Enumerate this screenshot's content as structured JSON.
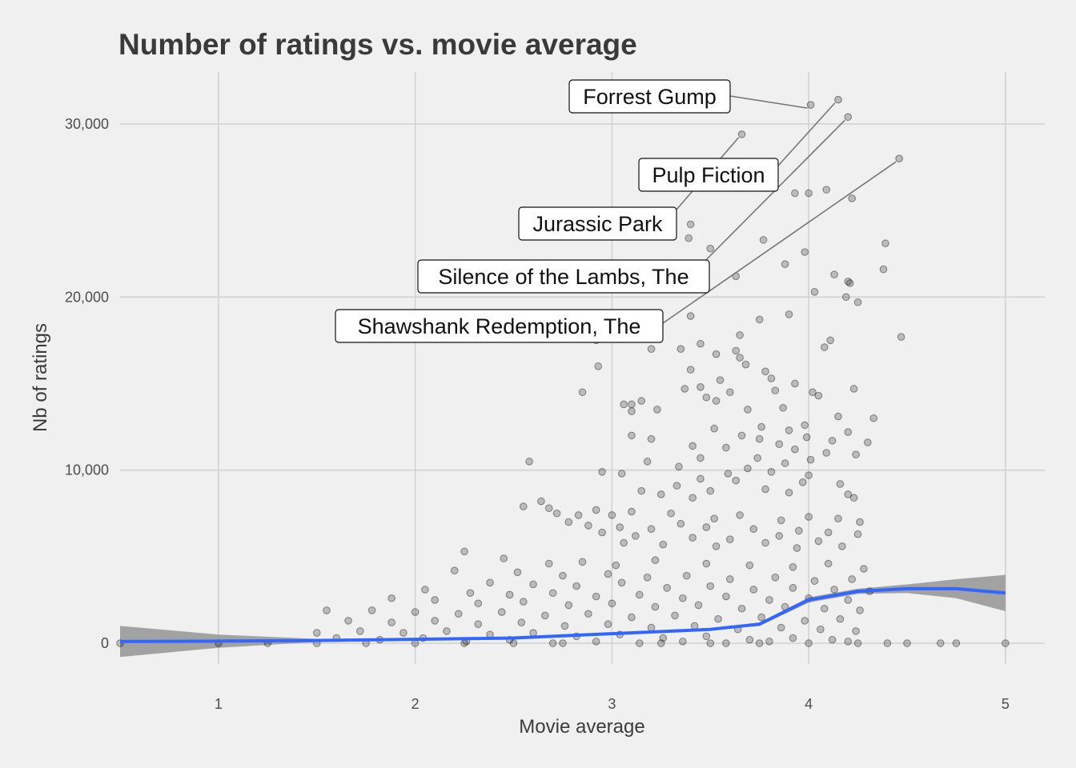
{
  "chart_data": {
    "type": "scatter",
    "title": "Number of ratings vs. movie average",
    "xlabel": "Movie average",
    "ylabel": "Nb of ratings",
    "xlim": [
      0.5,
      5.2
    ],
    "ylim": [
      -1200,
      33000
    ],
    "x_ticks": [
      1,
      2,
      3,
      4,
      5
    ],
    "x_tick_labels": [
      "1",
      "2",
      "3",
      "4",
      "5"
    ],
    "y_ticks": [
      0,
      10000,
      20000,
      30000
    ],
    "y_tick_labels": [
      "0",
      "10,000",
      "20,000",
      "30,000"
    ],
    "grid": true,
    "legend": "none",
    "point_color": "#000000",
    "point_alpha": 0.2,
    "smooth_color": "#3366ff",
    "band_color": "#999999",
    "highlighted_points": [
      {
        "label": "Forrest Gump",
        "x": 4.01,
        "y": 31100
      },
      {
        "label": "Pulp Fiction",
        "x": 4.15,
        "y": 31400
      },
      {
        "label": "Jurassic Park",
        "x": 3.66,
        "y": 29400
      },
      {
        "label": "Silence of the Lambs, The",
        "x": 4.2,
        "y": 30400
      },
      {
        "label": "Shawshank Redemption, The",
        "x": 4.46,
        "y": 28000
      }
    ],
    "other_points": [
      [
        4.0,
        26000
      ],
      [
        4.09,
        26200
      ],
      [
        4.22,
        25700
      ],
      [
        3.93,
        26000
      ],
      [
        3.4,
        24200
      ],
      [
        3.39,
        23400
      ],
      [
        3.77,
        23300
      ],
      [
        4.39,
        23100
      ],
      [
        3.5,
        22800
      ],
      [
        3.98,
        22600
      ],
      [
        4.38,
        21600
      ],
      [
        3.63,
        21200
      ],
      [
        3.88,
        21900
      ],
      [
        4.13,
        21300
      ],
      [
        4.21,
        20800
      ],
      [
        4.2,
        20900
      ],
      [
        4.19,
        20000
      ],
      [
        4.25,
        19700
      ],
      [
        4.03,
        20300
      ],
      [
        3.4,
        18900
      ],
      [
        3.75,
        18700
      ],
      [
        3.9,
        19000
      ],
      [
        3.65,
        17800
      ],
      [
        4.11,
        17500
      ],
      [
        4.08,
        17100
      ],
      [
        4.47,
        17700
      ],
      [
        3.45,
        17300
      ],
      [
        3.63,
        16900
      ],
      [
        3.35,
        17000
      ],
      [
        3.2,
        17000
      ],
      [
        2.92,
        17500
      ],
      [
        2.93,
        16000
      ],
      [
        3.65,
        16500
      ],
      [
        3.68,
        16100
      ],
      [
        3.53,
        16700
      ],
      [
        3.78,
        15700
      ],
      [
        3.4,
        15800
      ],
      [
        3.81,
        15300
      ],
      [
        3.93,
        15000
      ],
      [
        4.23,
        14700
      ],
      [
        3.45,
        14800
      ],
      [
        3.55,
        15200
      ],
      [
        3.6,
        14500
      ],
      [
        2.85,
        14500
      ],
      [
        3.37,
        14700
      ],
      [
        3.83,
        14600
      ],
      [
        4.02,
        14500
      ],
      [
        4.05,
        14300
      ],
      [
        3.53,
        14000
      ],
      [
        3.48,
        14200
      ],
      [
        3.87,
        13600
      ],
      [
        3.1,
        13800
      ],
      [
        3.15,
        14000
      ],
      [
        3.06,
        13800
      ],
      [
        3.1,
        13400
      ],
      [
        3.23,
        13500
      ],
      [
        3.69,
        13500
      ],
      [
        4.15,
        13100
      ],
      [
        4.33,
        13000
      ],
      [
        3.98,
        12600
      ],
      [
        3.52,
        12400
      ],
      [
        3.76,
        12500
      ],
      [
        3.9,
        12300
      ],
      [
        3.66,
        12000
      ],
      [
        3.99,
        11900
      ],
      [
        4.2,
        12200
      ],
      [
        3.1,
        12000
      ],
      [
        3.2,
        11800
      ],
      [
        3.75,
        11800
      ],
      [
        3.85,
        11500
      ],
      [
        4.12,
        11700
      ],
      [
        4.3,
        11600
      ],
      [
        3.41,
        11400
      ],
      [
        3.58,
        11300
      ],
      [
        3.93,
        11200
      ],
      [
        4.09,
        11000
      ],
      [
        4.24,
        10900
      ],
      [
        3.45,
        10700
      ],
      [
        3.74,
        10700
      ],
      [
        4.01,
        10600
      ],
      [
        3.18,
        10500
      ],
      [
        3.88,
        10400
      ],
      [
        2.58,
        10500
      ],
      [
        3.34,
        10200
      ],
      [
        3.59,
        9800
      ],
      [
        3.69,
        10100
      ],
      [
        3.81,
        9900
      ],
      [
        4.0,
        9700
      ],
      [
        2.95,
        9900
      ],
      [
        3.05,
        9800
      ],
      [
        3.45,
        9500
      ],
      [
        3.63,
        9400
      ],
      [
        3.97,
        9300
      ],
      [
        4.16,
        9200
      ],
      [
        3.33,
        9100
      ],
      [
        3.5,
        8800
      ],
      [
        3.78,
        8900
      ],
      [
        3.9,
        8700
      ],
      [
        4.2,
        8600
      ],
      [
        4.23,
        8400
      ],
      [
        3.15,
        8800
      ],
      [
        3.25,
        8600
      ],
      [
        3.41,
        8400
      ],
      [
        2.64,
        8200
      ],
      [
        2.55,
        7900
      ],
      [
        2.68,
        7800
      ],
      [
        2.72,
        7500
      ],
      [
        2.83,
        7400
      ],
      [
        2.92,
        7700
      ],
      [
        3.0,
        7400
      ],
      [
        3.1,
        7600
      ],
      [
        3.3,
        7500
      ],
      [
        3.52,
        7200
      ],
      [
        3.65,
        7400
      ],
      [
        3.86,
        7100
      ],
      [
        4.0,
        7300
      ],
      [
        4.15,
        7200
      ],
      [
        4.26,
        7000
      ],
      [
        2.78,
        7000
      ],
      [
        2.88,
        6800
      ],
      [
        3.04,
        6700
      ],
      [
        3.2,
        6600
      ],
      [
        3.35,
        6900
      ],
      [
        3.48,
        6700
      ],
      [
        3.72,
        6600
      ],
      [
        3.95,
        6500
      ],
      [
        4.1,
        6400
      ],
      [
        4.25,
        6300
      ],
      [
        2.95,
        6400
      ],
      [
        3.12,
        6200
      ],
      [
        3.41,
        6100
      ],
      [
        3.6,
        6000
      ],
      [
        3.85,
        6200
      ],
      [
        4.05,
        5900
      ],
      [
        3.06,
        5800
      ],
      [
        3.26,
        5700
      ],
      [
        3.53,
        5600
      ],
      [
        3.78,
        5800
      ],
      [
        3.94,
        5500
      ],
      [
        4.17,
        5600
      ],
      [
        2.25,
        5300
      ],
      [
        2.45,
        4900
      ],
      [
        2.68,
        4600
      ],
      [
        2.85,
        4700
      ],
      [
        3.02,
        4500
      ],
      [
        3.22,
        4800
      ],
      [
        3.48,
        4600
      ],
      [
        3.7,
        4500
      ],
      [
        3.92,
        4400
      ],
      [
        4.1,
        4600
      ],
      [
        4.28,
        4300
      ],
      [
        2.2,
        4200
      ],
      [
        2.52,
        4100
      ],
      [
        2.75,
        3900
      ],
      [
        2.98,
        4000
      ],
      [
        3.18,
        3800
      ],
      [
        3.38,
        3900
      ],
      [
        3.6,
        3700
      ],
      [
        3.83,
        3800
      ],
      [
        4.03,
        3600
      ],
      [
        4.22,
        3700
      ],
      [
        2.38,
        3500
      ],
      [
        2.6,
        3400
      ],
      [
        2.82,
        3300
      ],
      [
        3.05,
        3500
      ],
      [
        3.28,
        3200
      ],
      [
        3.5,
        3300
      ],
      [
        3.72,
        3100
      ],
      [
        3.92,
        3200
      ],
      [
        4.13,
        3100
      ],
      [
        4.31,
        3000
      ],
      [
        2.05,
        3100
      ],
      [
        2.28,
        2900
      ],
      [
        2.48,
        2800
      ],
      [
        2.7,
        2900
      ],
      [
        2.92,
        2700
      ],
      [
        3.14,
        2800
      ],
      [
        3.36,
        2600
      ],
      [
        3.58,
        2700
      ],
      [
        3.8,
        2500
      ],
      [
        4.0,
        2600
      ],
      [
        4.2,
        2500
      ],
      [
        1.88,
        2600
      ],
      [
        2.1,
        2500
      ],
      [
        2.32,
        2300
      ],
      [
        2.55,
        2400
      ],
      [
        2.78,
        2200
      ],
      [
        3.0,
        2300
      ],
      [
        3.22,
        2100
      ],
      [
        3.44,
        2200
      ],
      [
        3.66,
        2000
      ],
      [
        3.88,
        2100
      ],
      [
        4.08,
        2000
      ],
      [
        4.26,
        1900
      ],
      [
        1.55,
        1900
      ],
      [
        1.78,
        1900
      ],
      [
        2.0,
        1800
      ],
      [
        2.22,
        1700
      ],
      [
        2.44,
        1800
      ],
      [
        2.66,
        1600
      ],
      [
        2.88,
        1700
      ],
      [
        3.1,
        1500
      ],
      [
        3.32,
        1600
      ],
      [
        3.54,
        1400
      ],
      [
        3.76,
        1500
      ],
      [
        3.98,
        1300
      ],
      [
        4.16,
        1400
      ],
      [
        1.66,
        1300
      ],
      [
        1.88,
        1200
      ],
      [
        2.1,
        1300
      ],
      [
        2.32,
        1100
      ],
      [
        2.54,
        1200
      ],
      [
        2.76,
        1000
      ],
      [
        2.98,
        1100
      ],
      [
        3.2,
        900
      ],
      [
        3.42,
        1000
      ],
      [
        3.64,
        800
      ],
      [
        3.86,
        900
      ],
      [
        4.06,
        800
      ],
      [
        4.24,
        700
      ],
      [
        1.5,
        600
      ],
      [
        1.72,
        700
      ],
      [
        1.94,
        600
      ],
      [
        2.16,
        700
      ],
      [
        2.38,
        500
      ],
      [
        2.6,
        600
      ],
      [
        2.82,
        400
      ],
      [
        3.04,
        500
      ],
      [
        3.26,
        300
      ],
      [
        3.48,
        400
      ],
      [
        3.7,
        200
      ],
      [
        3.92,
        300
      ],
      [
        4.12,
        200
      ],
      [
        1.6,
        300
      ],
      [
        1.82,
        200
      ],
      [
        2.04,
        300
      ],
      [
        2.26,
        100
      ],
      [
        2.48,
        200
      ],
      [
        2.7,
        0
      ],
      [
        2.92,
        100
      ],
      [
        3.14,
        0
      ],
      [
        3.36,
        100
      ],
      [
        3.58,
        0
      ],
      [
        3.8,
        100
      ],
      [
        4.0,
        0
      ],
      [
        4.2,
        100
      ],
      [
        0.5,
        0
      ],
      [
        1.0,
        0
      ],
      [
        1.25,
        0
      ],
      [
        1.5,
        0
      ],
      [
        1.75,
        0
      ],
      [
        2.0,
        0
      ],
      [
        2.25,
        0
      ],
      [
        2.5,
        0
      ],
      [
        2.75,
        0
      ],
      [
        3.25,
        0
      ],
      [
        3.5,
        0
      ],
      [
        3.75,
        0
      ],
      [
        4.25,
        0
      ],
      [
        4.4,
        0
      ],
      [
        4.5,
        0
      ],
      [
        4.67,
        0
      ],
      [
        4.75,
        0
      ],
      [
        5.0,
        0
      ]
    ],
    "smooth_line": [
      [
        0.5,
        100
      ],
      [
        1.0,
        120
      ],
      [
        1.5,
        160
      ],
      [
        2.0,
        230
      ],
      [
        2.5,
        300
      ],
      [
        3.0,
        550
      ],
      [
        3.5,
        800
      ],
      [
        3.75,
        1100
      ],
      [
        4.0,
        2500
      ],
      [
        4.25,
        3000
      ],
      [
        4.5,
        3150
      ],
      [
        4.75,
        3150
      ],
      [
        5.0,
        2900
      ]
    ],
    "confidence_band": {
      "upper": [
        [
          0.5,
          1000
        ],
        [
          1.0,
          500
        ],
        [
          1.5,
          250
        ],
        [
          2.0,
          290
        ],
        [
          2.5,
          360
        ],
        [
          3.0,
          610
        ],
        [
          3.5,
          870
        ],
        [
          3.75,
          1200
        ],
        [
          4.0,
          2650
        ],
        [
          4.25,
          3150
        ],
        [
          4.5,
          3400
        ],
        [
          4.75,
          3700
        ],
        [
          5.0,
          3950
        ]
      ],
      "lower": [
        [
          0.5,
          -800
        ],
        [
          1.0,
          -260
        ],
        [
          1.5,
          70
        ],
        [
          2.0,
          170
        ],
        [
          2.5,
          240
        ],
        [
          3.0,
          490
        ],
        [
          3.5,
          730
        ],
        [
          3.75,
          1000
        ],
        [
          4.0,
          2350
        ],
        [
          4.25,
          2850
        ],
        [
          4.5,
          2900
        ],
        [
          4.75,
          2600
        ],
        [
          5.0,
          1850
        ]
      ]
    }
  }
}
